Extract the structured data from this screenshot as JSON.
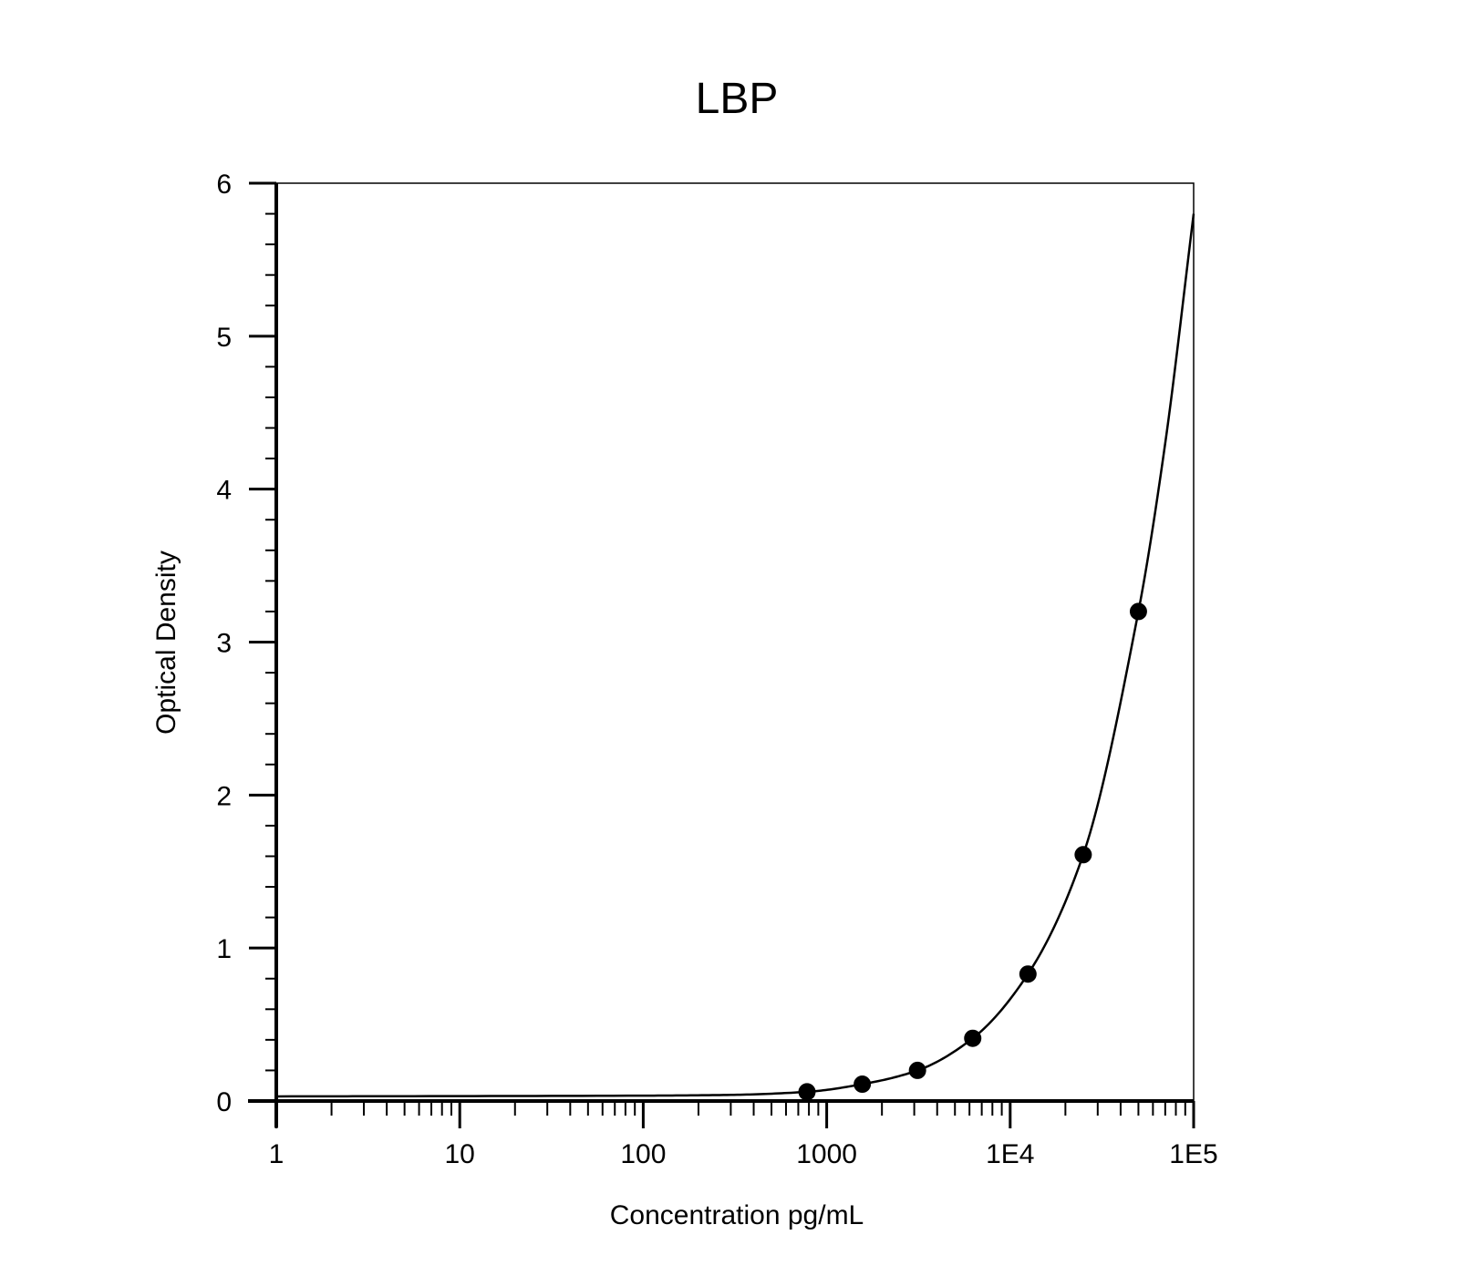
{
  "chart_data": {
    "type": "scatter",
    "title": "LBP",
    "xlabel": "Concentration pg/mL",
    "ylabel": "Optical Density",
    "x_scale": "log",
    "xlim": [
      1,
      100000
    ],
    "ylim": [
      0,
      6
    ],
    "x_ticks": [
      {
        "value": 1,
        "label": "1"
      },
      {
        "value": 10,
        "label": "10"
      },
      {
        "value": 100,
        "label": "100"
      },
      {
        "value": 1000,
        "label": "1000"
      },
      {
        "value": 10000,
        "label": "1E4"
      },
      {
        "value": 100000,
        "label": "1E5"
      }
    ],
    "y_ticks": [
      {
        "value": 0,
        "label": "0"
      },
      {
        "value": 1,
        "label": "1"
      },
      {
        "value": 2,
        "label": "2"
      },
      {
        "value": 3,
        "label": "3"
      },
      {
        "value": 4,
        "label": "4"
      },
      {
        "value": 5,
        "label": "5"
      },
      {
        "value": 6,
        "label": "6"
      }
    ],
    "grid": false,
    "legend": "none",
    "points": [
      {
        "x": 781,
        "y": 0.06
      },
      {
        "x": 1563,
        "y": 0.11
      },
      {
        "x": 3125,
        "y": 0.2
      },
      {
        "x": 6250,
        "y": 0.41
      },
      {
        "x": 12500,
        "y": 0.83
      },
      {
        "x": 25000,
        "y": 1.61
      },
      {
        "x": 50000,
        "y": 3.2
      }
    ],
    "fit_curve": [
      {
        "x": 1,
        "y": 0.03
      },
      {
        "x": 100,
        "y": 0.035
      },
      {
        "x": 300,
        "y": 0.04
      },
      {
        "x": 781,
        "y": 0.06
      },
      {
        "x": 1563,
        "y": 0.11
      },
      {
        "x": 3125,
        "y": 0.2
      },
      {
        "x": 6250,
        "y": 0.41
      },
      {
        "x": 12500,
        "y": 0.83
      },
      {
        "x": 25000,
        "y": 1.61
      },
      {
        "x": 50000,
        "y": 3.2
      },
      {
        "x": 70000,
        "y": 4.3
      },
      {
        "x": 100000,
        "y": 5.8
      }
    ],
    "colors": {
      "line": "#000000",
      "marker": "#000000"
    }
  }
}
